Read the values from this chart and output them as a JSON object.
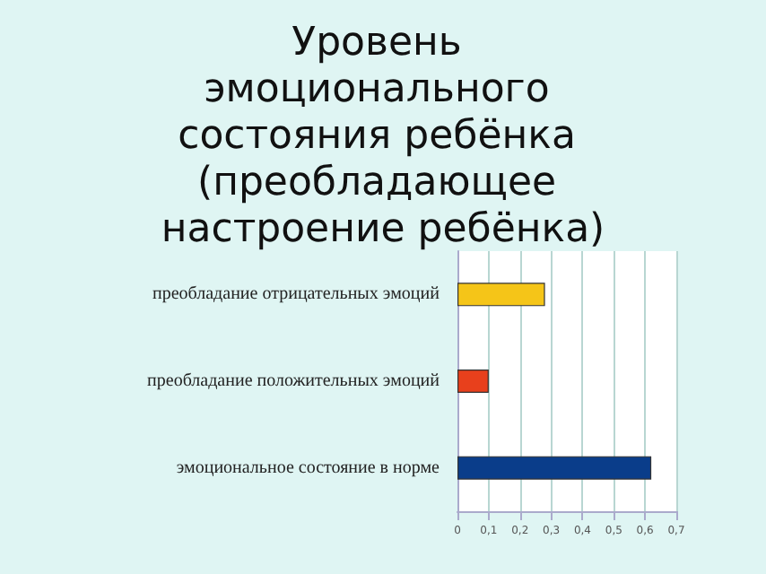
{
  "chart_data": {
    "type": "bar",
    "orientation": "horizontal",
    "title": "Уровень эмоционального состояния ребёнка (преобладающее настроение ребёнка)",
    "categories": [
      "преобладание отрицательных эмоций",
      "преобладание положительных эмоций",
      "эмоциональное состояние в норме"
    ],
    "values": [
      0.28,
      0.1,
      0.62
    ],
    "colors": [
      "#f5c518",
      "#e8401c",
      "#0a3d8a"
    ],
    "xlim": [
      0,
      0.7
    ],
    "xticks": [
      {
        "value": 0,
        "label": "0"
      },
      {
        "value": 0.1,
        "label": "0,1"
      },
      {
        "value": 0.2,
        "label": "0,2"
      },
      {
        "value": 0.3,
        "label": "0,3"
      },
      {
        "value": 0.4,
        "label": "0,4"
      },
      {
        "value": 0.5,
        "label": "0,5"
      },
      {
        "value": 0.6,
        "label": "0,6"
      },
      {
        "value": 0.7,
        "label": "0,7"
      }
    ],
    "grid": "x"
  }
}
